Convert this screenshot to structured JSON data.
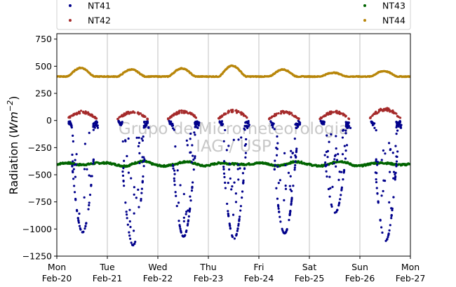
{
  "chart_data": {
    "type": "scatter",
    "title": "",
    "ylabel_parts": [
      "Radiation (",
      "Wm",
      "−2",
      ")"
    ],
    "watermark": [
      "Grupo de Micrometeorologia",
      "IAG / USP"
    ],
    "ylim": [
      -1250,
      800
    ],
    "yticks": [
      -1250,
      -1000,
      -750,
      -500,
      -250,
      0,
      250,
      500,
      750
    ],
    "ytick_labels": [
      "−1250",
      "−1000",
      "−750",
      "−500",
      "−250",
      "0",
      "250",
      "500",
      "750"
    ],
    "xlim_days": [
      0,
      7
    ],
    "xticks": [
      {
        "day": "Mon",
        "date": "Feb-20"
      },
      {
        "day": "Tue",
        "date": "Feb-21"
      },
      {
        "day": "Wed",
        "date": "Feb-22"
      },
      {
        "day": "Thu",
        "date": "Feb-23"
      },
      {
        "day": "Fri",
        "date": "Feb-24"
      },
      {
        "day": "Sat",
        "date": "Feb-25"
      },
      {
        "day": "Sun",
        "date": "Feb-26"
      },
      {
        "day": "Mon",
        "date": "Feb-27"
      }
    ],
    "grid": "x",
    "legend_placement": "top",
    "series": [
      {
        "name": "NT41",
        "color": "#00008b",
        "night_level": 0,
        "daily_min": [
          -1030,
          -1150,
          -1070,
          -1090,
          -1040,
          -850,
          -1110,
          null
        ]
      },
      {
        "name": "NT42",
        "color": "#a52a2a",
        "night_level": 0,
        "daily_max": [
          100,
          100,
          105,
          110,
          100,
          100,
          130,
          null
        ]
      },
      {
        "name": "NT43",
        "color": "#006400",
        "mean_level": -405,
        "range": [
          -460,
          -360
        ]
      },
      {
        "name": "NT44",
        "color": "#b8860b",
        "baseline": 405,
        "daily_peak": [
          485,
          470,
          480,
          505,
          470,
          440,
          455,
          null
        ]
      }
    ]
  }
}
